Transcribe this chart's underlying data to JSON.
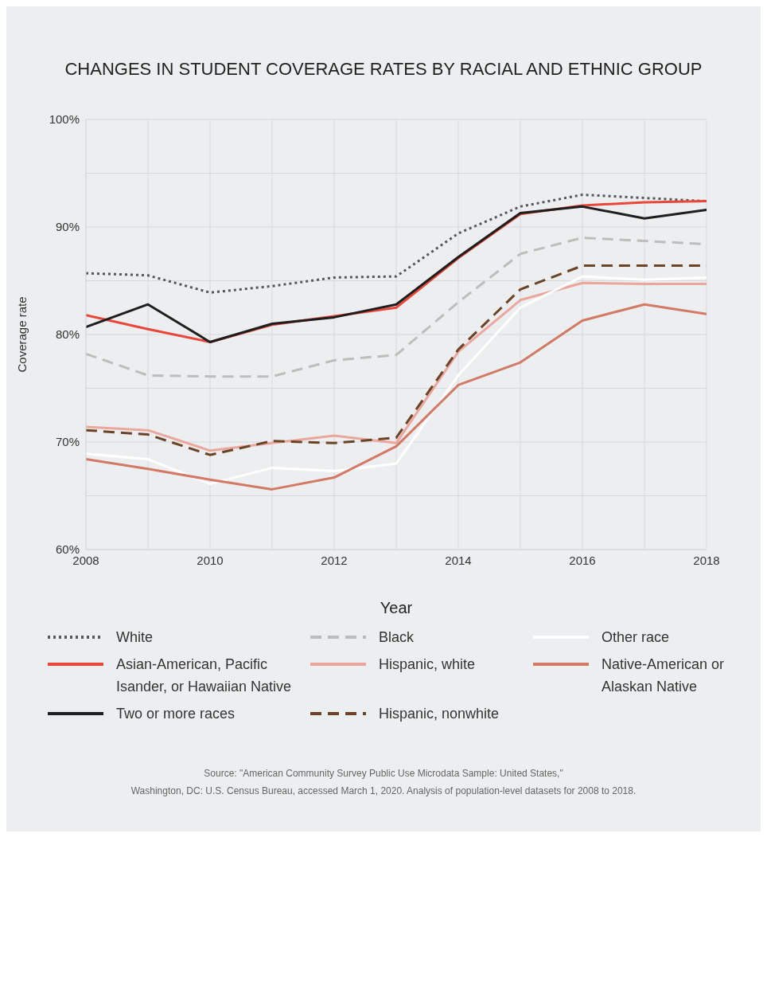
{
  "chart_data": {
    "type": "line",
    "title": "CHANGES IN STUDENT COVERAGE RATES BY RACIAL AND ETHNIC GROUP",
    "xlabel": "Year",
    "ylabel": "Coverage rate",
    "x": [
      2008,
      2009,
      2010,
      2011,
      2012,
      2013,
      2014,
      2015,
      2016,
      2017,
      2018
    ],
    "xlim": [
      2008,
      2018
    ],
    "xticks": [
      2008,
      {
        "value": 2009,
        "label": null
      },
      2010,
      {
        "value": 2011,
        "label": null
      },
      2012,
      {
        "value": 2013,
        "label": null
      },
      2014,
      {
        "value": 2015,
        "label": null
      },
      2016,
      {
        "value": 2017,
        "label": null
      },
      2018
    ],
    "ylim": [
      60,
      100
    ],
    "yticks": [
      {
        "value": 60,
        "label": "60%"
      },
      {
        "value": 65,
        "label": null
      },
      {
        "value": 70,
        "label": "70%"
      },
      {
        "value": 75,
        "label": null
      },
      {
        "value": 80,
        "label": "80%"
      },
      {
        "value": 85,
        "label": null
      },
      {
        "value": 90,
        "label": "90%"
      },
      {
        "value": 95,
        "label": null
      },
      {
        "value": 100,
        "label": "100%"
      }
    ],
    "grid": true,
    "legend": "bottom",
    "marker": "none",
    "series": [
      {
        "name": "White",
        "color": "#55575e",
        "line_style": "dotted",
        "values": [
          85.7,
          85.5,
          83.9,
          84.5,
          85.3,
          85.4,
          89.4,
          91.9,
          93.0,
          92.7,
          92.4
        ]
      },
      {
        "name": "Asian-American, Pacific Isander, or Hawaiian Native",
        "color": "#e8473a",
        "line_style": "solid",
        "values": [
          81.8,
          80.5,
          79.3,
          80.9,
          81.7,
          82.5,
          87.1,
          91.2,
          92.0,
          92.3,
          92.4
        ]
      },
      {
        "name": "Two or more races",
        "color": "#1e1e1e",
        "line_style": "solid",
        "values": [
          80.7,
          82.8,
          79.3,
          81.0,
          81.6,
          82.8,
          87.2,
          91.3,
          91.9,
          90.8,
          91.6
        ]
      },
      {
        "name": "Black",
        "color": "#bdbdbd",
        "line_style": "dashed",
        "values": [
          78.2,
          76.2,
          76.1,
          76.1,
          77.6,
          78.1,
          83.0,
          87.5,
          89.0,
          88.7,
          88.4
        ]
      },
      {
        "name": "Hispanic, white",
        "color": "#eba79d",
        "line_style": "solid",
        "values": [
          71.4,
          71.1,
          69.2,
          69.9,
          70.6,
          69.9,
          78.4,
          83.2,
          84.8,
          84.7,
          84.7
        ]
      },
      {
        "name": "Hispanic, nonwhite",
        "color": "#6b4327",
        "line_style": "dashed",
        "values": [
          71.1,
          70.7,
          68.8,
          70.1,
          69.9,
          70.4,
          78.6,
          84.2,
          86.4,
          86.4,
          86.4
        ]
      },
      {
        "name": "Other race",
        "color": "#ffffff",
        "line_style": "solid",
        "values": [
          68.9,
          68.4,
          66.1,
          67.6,
          67.3,
          68.0,
          76.2,
          82.5,
          85.4,
          85.1,
          85.3
        ]
      },
      {
        "name": "Native-American or Alaskan Native",
        "color": "#d27a65",
        "line_style": "solid",
        "values": [
          68.4,
          67.5,
          66.5,
          65.6,
          66.7,
          69.6,
          75.3,
          77.4,
          81.3,
          82.8,
          81.9
        ]
      }
    ],
    "annotations": [
      "Source:  \"American Community Survey Public Use Microdata Sample: United States,\"",
      "Washington, DC: U.S. Census Bureau, accessed March 1, 2020. Analysis of population-level datasets for 2008 to 2018."
    ]
  }
}
